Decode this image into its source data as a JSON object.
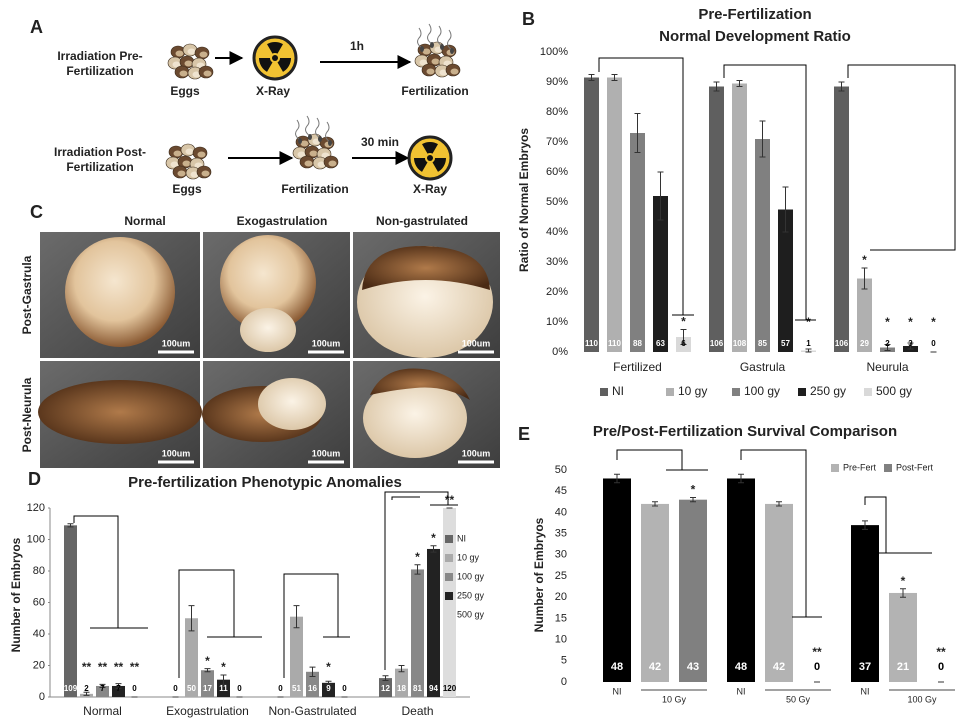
{
  "figure": {
    "panel_labels": [
      "A",
      "B",
      "C",
      "D",
      "E"
    ],
    "schematic": {
      "rows": [
        {
          "label": [
            "Irradiation Pre-",
            "Fertilization"
          ],
          "steps": [
            "Eggs",
            "X-Ray",
            "Fertilization"
          ],
          "time": "1h"
        },
        {
          "label": [
            "Irradiation Post-",
            "Fertilization"
          ],
          "steps": [
            "Eggs",
            "Fertilization",
            "X-Ray"
          ],
          "time": "30 min"
        }
      ]
    },
    "images": {
      "columns": [
        "Normal",
        "Exogastrulation",
        "Non-gastrulated"
      ],
      "rows": [
        "Post-Gastrula",
        "Post-Neurula"
      ],
      "scale_bar": "100um"
    }
  },
  "chart_data": [
    {
      "type": "bar",
      "title": [
        "Pre-Fertilization",
        "Normal Development Ratio"
      ],
      "y_label": "Ratio of Normal Embryos",
      "categories": [
        "Fertilized",
        "Gastrula",
        "Neurula"
      ],
      "ylim": [
        0,
        100
      ],
      "yticks": [
        {
          "value": 0,
          "label": "0%"
        },
        {
          "value": 10,
          "label": "10%"
        },
        {
          "value": 20,
          "label": "20%"
        },
        {
          "value": 30,
          "label": "30%"
        },
        {
          "value": 40,
          "label": "40%"
        },
        {
          "value": 50,
          "label": "50%"
        },
        {
          "value": 60,
          "label": "60%"
        },
        {
          "value": 70,
          "label": "70%"
        },
        {
          "value": 80,
          "label": "80%"
        },
        {
          "value": 90,
          "label": "90%"
        },
        {
          "value": 100,
          "label": "100%"
        }
      ],
      "legend": "bottom",
      "series": [
        {
          "name": "NI",
          "color": "#5f5f5f",
          "values": [
            91.5,
            88.5,
            88.5
          ],
          "errors": [
            1,
            1.5,
            1.5
          ],
          "n": [
            110,
            106,
            106
          ],
          "stars": [
            null,
            null,
            null
          ]
        },
        {
          "name": "10 gy",
          "color": "#b0b0b0",
          "values": [
            91.5,
            89.5,
            24.5
          ],
          "errors": [
            1,
            1,
            3.5
          ],
          "n": [
            110,
            108,
            29
          ],
          "stars": [
            null,
            null,
            "*"
          ]
        },
        {
          "name": "100 gy",
          "color": "#808080",
          "values": [
            73,
            71,
            1.5
          ],
          "errors": [
            6.5,
            6,
            1
          ],
          "n": [
            88,
            85,
            2
          ],
          "stars": [
            null,
            null,
            "*"
          ]
        },
        {
          "name": "250 gy",
          "color": "#1e1e1e",
          "values": [
            52,
            47.5,
            2
          ],
          "errors": [
            8,
            7.5,
            1
          ],
          "n": [
            63,
            57,
            3
          ],
          "stars": [
            null,
            null,
            "*"
          ]
        },
        {
          "name": "500 gy",
          "color": "#d9d9d9",
          "values": [
            5,
            0.5,
            0
          ],
          "errors": [
            2.5,
            0.5,
            0
          ],
          "n": [
            6,
            1,
            0
          ],
          "stars": [
            "*",
            "*",
            "*"
          ]
        }
      ]
    },
    {
      "type": "bar",
      "title": "Pre-fertilization Phenotypic Anomalies",
      "y_label": "Number of Embryos",
      "categories": [
        "Normal",
        "Exogastrulation",
        "Non-Gastrulated",
        "Death"
      ],
      "ylim": [
        0,
        120
      ],
      "yticks": [
        0,
        20,
        40,
        60,
        80,
        100,
        120
      ],
      "legend": "right",
      "series": [
        {
          "name": "NI",
          "color": "#666666",
          "values": [
            109,
            0,
            0,
            12
          ],
          "errors": [
            1,
            0,
            0,
            1.5
          ],
          "stars": [
            null,
            null,
            null,
            null
          ]
        },
        {
          "name": "10 gy",
          "color": "#aaaaaa",
          "values": [
            2,
            50,
            51,
            18
          ],
          "errors": [
            1,
            8,
            7,
            2
          ],
          "stars": [
            "**",
            null,
            null,
            null
          ]
        },
        {
          "name": "100 gy",
          "color": "#888888",
          "values": [
            7,
            17,
            16,
            81
          ],
          "errors": [
            1,
            1,
            3,
            3
          ],
          "stars": [
            "**",
            "*",
            null,
            "*"
          ]
        },
        {
          "name": "250 gy",
          "color": "#222222",
          "values": [
            7,
            11,
            9,
            94
          ],
          "errors": [
            1.5,
            3,
            1,
            2
          ],
          "stars": [
            "**",
            "*",
            "*",
            "*"
          ]
        },
        {
          "name": "500 gy",
          "color": "#dddddd",
          "values": [
            0,
            0,
            0,
            120
          ],
          "errors": [
            0,
            0,
            0,
            0
          ],
          "stars": [
            "**",
            null,
            null,
            "**"
          ]
        }
      ]
    },
    {
      "type": "bar",
      "title": "Pre/Post-Fertilization Survival Comparison",
      "y_label": "Number of Embryos",
      "categories": [
        "10 Gy",
        "50 Gy",
        "100 Gy"
      ],
      "ylim": [
        0,
        50
      ],
      "yticks": [
        0,
        5,
        10,
        15,
        20,
        25,
        30,
        35,
        40,
        45,
        50
      ],
      "legend": "top-right",
      "series": [
        {
          "name": "NI",
          "color": "#000000",
          "in_legend": false,
          "values": [
            48,
            48,
            37
          ],
          "errors": [
            1,
            1,
            1
          ],
          "stars": [
            null,
            null,
            null
          ]
        },
        {
          "name": "Pre-Fert",
          "color": "#b3b3b3",
          "values": [
            42,
            42,
            21
          ],
          "errors": [
            0.5,
            0.5,
            1
          ],
          "stars": [
            null,
            null,
            "*"
          ]
        },
        {
          "name": "Post-Fert",
          "color": "#808080",
          "values": [
            43,
            0,
            0
          ],
          "errors": [
            0.5,
            0,
            0
          ],
          "stars": [
            "*",
            "**",
            "**"
          ]
        }
      ]
    }
  ]
}
